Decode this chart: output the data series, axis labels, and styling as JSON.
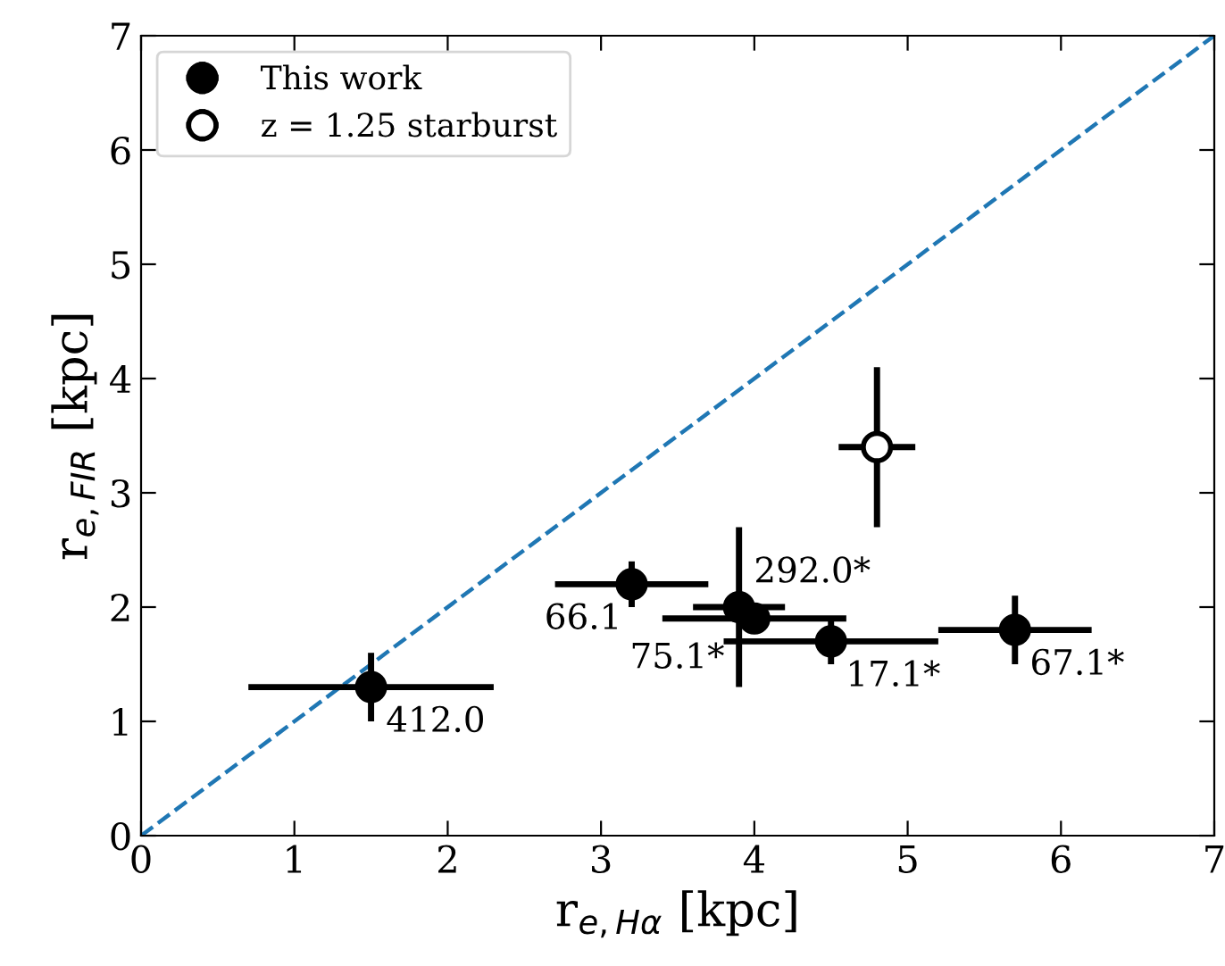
{
  "chart_data": {
    "type": "scatter",
    "xlabel": "r$_{e,Hα}$ [kpc]",
    "ylabel": "r$_{e,FIR}$ [kpc]",
    "xlim": [
      0,
      7
    ],
    "ylim": [
      0,
      7
    ],
    "xticks": [
      0,
      1,
      2,
      3,
      4,
      5,
      6,
      7
    ],
    "yticks": [
      0,
      1,
      2,
      3,
      4,
      5,
      6,
      7
    ],
    "grid": false,
    "legend": "top left",
    "series": [
      {
        "name": "This work",
        "color": "#000000",
        "marker": "circle",
        "x": [
          1.5,
          3.2,
          3.9,
          4.0,
          4.5,
          5.7
        ],
        "values": [
          1.3,
          2.2,
          2.0,
          1.9,
          1.7,
          1.8
        ],
        "xerrors": [
          0.8,
          0.5,
          0.3,
          0.6,
          0.7,
          0.5
        ],
        "errors": [
          0.3,
          0.2,
          0.7,
          0.1,
          0.2,
          0.3
        ]
      },
      {
        "name": "z = 1.25 starburst",
        "color": "#ffffff",
        "marker": "circle",
        "x": [
          4.8
        ],
        "values": [
          3.4
        ],
        "xerrors": [
          0.25
        ],
        "errors": [
          0.7
        ]
      },
      {
        "type": "line",
        "color": "#1f77b4",
        "line_style": "dashed",
        "marker": "none",
        "x": [
          0,
          7
        ],
        "values": [
          0,
          7
        ]
      }
    ],
    "annotations": [
      {
        "text": "412.0",
        "x": 1.5,
        "y": 1.3
      },
      {
        "text": "66.1",
        "x": 3.2,
        "y": 2.2
      },
      {
        "text": "292.0*",
        "x": 3.9,
        "y": 2.0
      },
      {
        "text": "75.1*",
        "x": 4.0,
        "y": 1.9
      },
      {
        "text": "17.1*",
        "x": 4.5,
        "y": 1.7
      },
      {
        "text": "67.1*",
        "x": 5.7,
        "y": 1.8
      }
    ]
  }
}
